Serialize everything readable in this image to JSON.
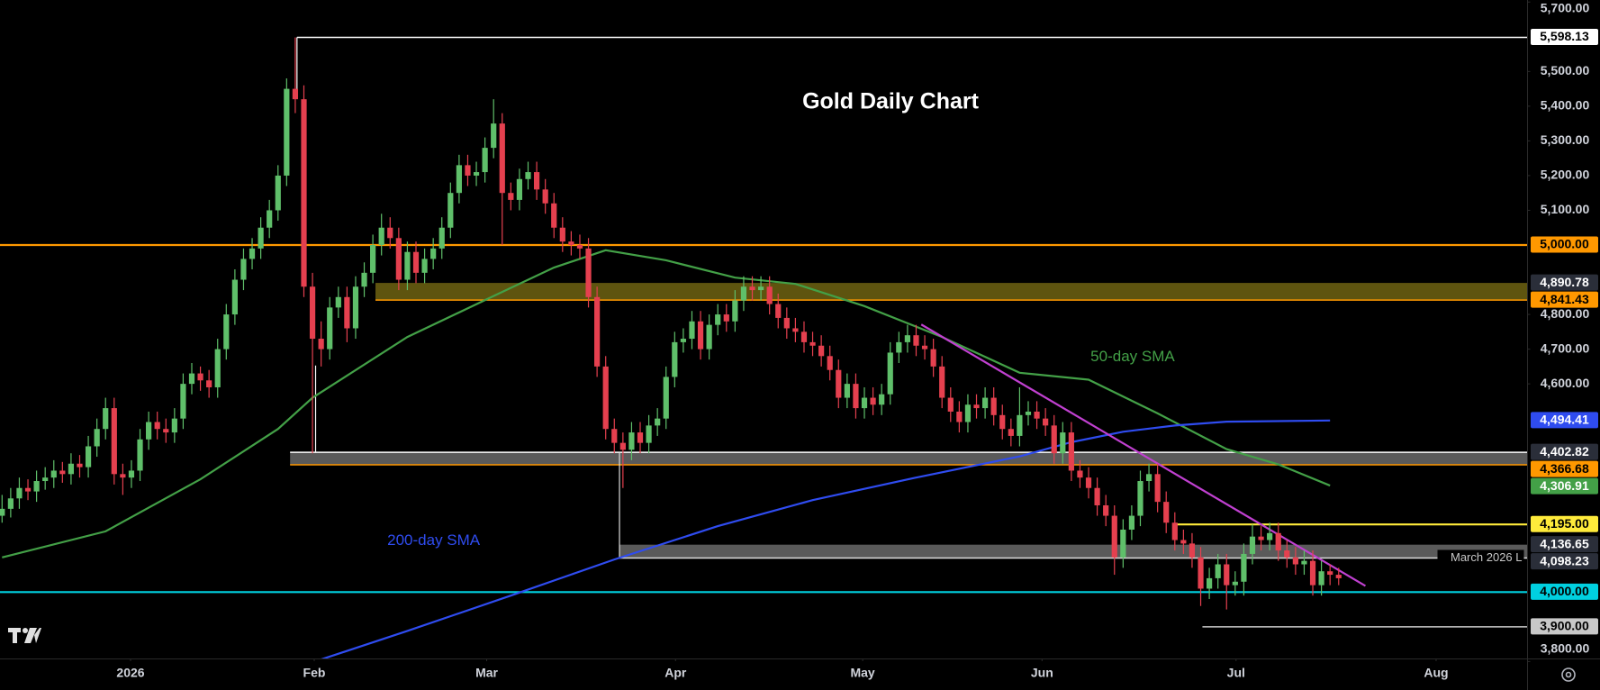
{
  "chart_data": {
    "type": "candlestick",
    "title": "Gold Daily Chart",
    "xlim": [
      -0.24,
      176.9
    ],
    "ylim": [
      3808.8,
      5705.9
    ],
    "xticks": [
      {
        "value": 14.9,
        "label": "2026"
      },
      {
        "value": 36.2,
        "label": "Feb"
      },
      {
        "value": 56.2,
        "label": "Mar"
      },
      {
        "value": 78.1,
        "label": "Apr"
      },
      {
        "value": 99.8,
        "label": "May"
      },
      {
        "value": 120.6,
        "label": "Jun"
      },
      {
        "value": 143.1,
        "label": "Jul"
      },
      {
        "value": 166.3,
        "label": "Aug"
      }
    ],
    "yticks": [
      {
        "value": 5700,
        "label": "5,700.00"
      },
      {
        "value": 5500,
        "label": "5,500.00"
      },
      {
        "value": 5400,
        "label": "5,400.00"
      },
      {
        "value": 5300,
        "label": "5,300.00"
      },
      {
        "value": 5200,
        "label": "5,200.00"
      },
      {
        "value": 5100,
        "label": "5,100.00"
      },
      {
        "value": 4800,
        "label": "4,800.00"
      },
      {
        "value": 4700,
        "label": "4,700.00"
      },
      {
        "value": 4600,
        "label": "4,600.00"
      },
      {
        "value": 3800,
        "label": "3,800.00"
      }
    ],
    "up_color": "#5fbf6a",
    "down_color": "#e5404f",
    "candles": {
      "open": [
        4220,
        4240,
        4270,
        4300,
        4290,
        4320,
        4330,
        4350,
        4340,
        4370,
        4360,
        4420,
        4470,
        4530,
        4340,
        4330,
        4350,
        4440,
        4490,
        4470,
        4460,
        4500,
        4600,
        4630,
        4610,
        4590,
        4700,
        4800,
        4900,
        4960,
        4990,
        5050,
        5100,
        5200,
        5450,
        5420,
        4880,
        4730,
        4700,
        4820,
        4850,
        4760,
        4880,
        4920,
        5000,
        5050,
        5020,
        4900,
        4980,
        4920,
        4960,
        4990,
        5050,
        5150,
        5230,
        5200,
        5210,
        5280,
        5350,
        5150,
        5130,
        5190,
        5210,
        5160,
        5120,
        5050,
        5010,
        5000,
        4990,
        4850,
        4650,
        4470,
        4430,
        4410,
        4460,
        4430,
        4480,
        4500,
        4620,
        4720,
        4730,
        4780,
        4700,
        4770,
        4800,
        4780,
        4840,
        4880,
        4870,
        4880,
        4830,
        4790,
        4760,
        4750,
        4720,
        4710,
        4680,
        4640,
        4560,
        4600,
        4530,
        4560,
        4540,
        4570,
        4690,
        4720,
        4740,
        4710,
        4700,
        4650,
        4560,
        4520,
        4490,
        4540,
        4530,
        4560,
        4510,
        4470,
        4450,
        4510,
        4520,
        4500,
        4480,
        4400,
        4460,
        4350,
        4330,
        4300,
        4250,
        4220,
        4100,
        4180,
        4220,
        4320,
        4340,
        4260,
        4200,
        4150,
        4140,
        4100,
        4010,
        4040,
        4080,
        4020,
        4030,
        4110,
        4160,
        4150,
        4170,
        4120,
        4100,
        4080,
        4090,
        4020,
        4060,
        4050
      ],
      "high": [
        4280,
        4300,
        4330,
        4325,
        4350,
        4360,
        4380,
        4375,
        4400,
        4395,
        4450,
        4500,
        4560,
        4560,
        4370,
        4380,
        4470,
        4520,
        4520,
        4500,
        4530,
        4630,
        4660,
        4650,
        4640,
        4730,
        4830,
        4930,
        4990,
        5020,
        5080,
        5130,
        5230,
        5480,
        5598.13,
        5460,
        4920,
        4780,
        4850,
        4880,
        4880,
        4910,
        4950,
        5030,
        5090,
        5080,
        5050,
        5010,
        5010,
        4990,
        5020,
        5080,
        5180,
        5260,
        5260,
        5240,
        5310,
        5420,
        5380,
        5180,
        5220,
        5240,
        5240,
        5190,
        5150,
        5080,
        5040,
        5030,
        5020,
        4880,
        4680,
        4500,
        4460,
        4490,
        4490,
        4510,
        4530,
        4650,
        4750,
        4760,
        4810,
        4810,
        4800,
        4830,
        4830,
        4870,
        4910,
        4910,
        4910,
        4910,
        4860,
        4820,
        4790,
        4780,
        4750,
        4740,
        4710,
        4670,
        4630,
        4630,
        4590,
        4590,
        4600,
        4720,
        4750,
        4770,
        4770,
        4740,
        4730,
        4680,
        4590,
        4550,
        4570,
        4570,
        4590,
        4590,
        4540,
        4500,
        4590,
        4550,
        4550,
        4530,
        4510,
        4490,
        4490,
        4380,
        4360,
        4330,
        4280,
        4250,
        4210,
        4250,
        4350,
        4370,
        4370,
        4290,
        4230,
        4180,
        4170,
        4130,
        4070,
        4110,
        4110,
        4060,
        4140,
        4195,
        4190,
        4200,
        4200,
        4150,
        4130,
        4120,
        4120,
        4090,
        4080,
        4070
      ],
      "low": [
        4200,
        4215,
        4240,
        4265,
        4260,
        4295,
        4300,
        4315,
        4310,
        4330,
        4330,
        4390,
        4440,
        4310,
        4280,
        4300,
        4320,
        4410,
        4440,
        4430,
        4430,
        4470,
        4570,
        4580,
        4560,
        4560,
        4670,
        4770,
        4870,
        4930,
        4960,
        5020,
        5070,
        5170,
        5380,
        4850,
        4400,
        4650,
        4670,
        4790,
        4720,
        4730,
        4850,
        4890,
        4970,
        4990,
        4870,
        4870,
        4890,
        4890,
        4930,
        4960,
        5020,
        5120,
        5170,
        5170,
        5180,
        5250,
        5000,
        5100,
        5100,
        5160,
        5130,
        5090,
        5020,
        4980,
        4970,
        4960,
        4820,
        4620,
        4440,
        4400,
        4300,
        4380,
        4400,
        4400,
        4450,
        4470,
        4590,
        4690,
        4700,
        4670,
        4670,
        4740,
        4750,
        4750,
        4810,
        4840,
        4840,
        4800,
        4760,
        4730,
        4720,
        4690,
        4680,
        4650,
        4610,
        4530,
        4530,
        4500,
        4500,
        4510,
        4510,
        4540,
        4660,
        4690,
        4680,
        4670,
        4620,
        4530,
        4490,
        4460,
        4460,
        4500,
        4500,
        4480,
        4440,
        4420,
        4420,
        4480,
        4470,
        4450,
        4370,
        4370,
        4320,
        4300,
        4270,
        4220,
        4190,
        4050,
        4070,
        4150,
        4190,
        4290,
        4230,
        4170,
        4120,
        4110,
        4070,
        3960,
        3980,
        4010,
        3950,
        3990,
        3990,
        4080,
        4120,
        4120,
        4090,
        4070,
        4050,
        4050,
        3990,
        3990,
        4020,
        4020
      ],
      "close": [
        4240,
        4270,
        4300,
        4290,
        4320,
        4330,
        4350,
        4340,
        4370,
        4360,
        4420,
        4470,
        4530,
        4340,
        4330,
        4350,
        4440,
        4490,
        4470,
        4460,
        4500,
        4600,
        4630,
        4610,
        4590,
        4700,
        4800,
        4900,
        4960,
        4990,
        5050,
        5100,
        5200,
        5450,
        5420,
        4880,
        4730,
        4700,
        4820,
        4850,
        4760,
        4880,
        4920,
        5000,
        5050,
        5020,
        4900,
        4980,
        4920,
        4960,
        4990,
        5050,
        5150,
        5230,
        5200,
        5210,
        5280,
        5350,
        5150,
        5130,
        5190,
        5210,
        5160,
        5120,
        5050,
        5010,
        5000,
        4990,
        4850,
        4650,
        4470,
        4430,
        4410,
        4460,
        4430,
        4480,
        4500,
        4620,
        4720,
        4730,
        4780,
        4700,
        4770,
        4800,
        4780,
        4840,
        4880,
        4870,
        4880,
        4830,
        4790,
        4760,
        4750,
        4720,
        4710,
        4680,
        4640,
        4560,
        4600,
        4530,
        4560,
        4540,
        4570,
        4690,
        4720,
        4740,
        4710,
        4700,
        4650,
        4560,
        4520,
        4490,
        4540,
        4530,
        4560,
        4510,
        4470,
        4450,
        4510,
        4520,
        4500,
        4480,
        4400,
        4460,
        4350,
        4330,
        4300,
        4250,
        4220,
        4100,
        4180,
        4220,
        4320,
        4340,
        4260,
        4200,
        4150,
        4140,
        4100,
        4010,
        4040,
        4080,
        4020,
        4030,
        4110,
        4160,
        4150,
        4170,
        4120,
        4100,
        4080,
        4090,
        4020,
        4060,
        4050,
        4040
      ]
    },
    "series": [
      {
        "name": "50-day SMA",
        "color": "#43a047",
        "last_label": "4,306.91",
        "x": [
          0,
          12,
          23,
          32,
          36,
          47,
          57,
          64,
          70,
          77,
          85,
          92,
          100,
          109,
          118,
          126,
          134,
          142,
          148,
          154
        ],
        "values": [
          4100,
          4175,
          4325,
          4470,
          4560,
          4735,
          4853,
          4935,
          4985,
          4956,
          4906,
          4888,
          4824,
          4735,
          4632,
          4612,
          4515,
          4412,
          4368,
          4306.91
        ]
      },
      {
        "name": "200-day SMA",
        "color": "#2f4cf0",
        "last_label": "4,494.41",
        "x": [
          37,
          47,
          59,
          71,
          83,
          94,
          106,
          118,
          124,
          130,
          136,
          142,
          154
        ],
        "values": [
          3806,
          3888,
          3990,
          4094,
          4190,
          4265,
          4330,
          4391,
          4432,
          4462,
          4480,
          4491,
          4494.41
        ]
      }
    ],
    "trendline": {
      "color": "#c040d0",
      "x": [
        106.6,
        158.1
      ],
      "values": [
        4771,
        4018
      ]
    },
    "levels": [
      {
        "value": 5598.13,
        "label": "5,598.13",
        "color": "#ffffff",
        "from": 34.2
      },
      {
        "value": 5000,
        "label": "5,000.00",
        "color": "#ff9800"
      },
      {
        "value": 4195,
        "label": "4,195.00",
        "color": "#ffeb3b",
        "from": 135.9
      },
      {
        "value": 4000,
        "label": "4,000.00",
        "color": "#00d0e0"
      },
      {
        "value": 3900,
        "label": "3,900.00",
        "color": "#c8c8c8",
        "from": 139.2
      }
    ],
    "zones": [
      {
        "upper": 4890.78,
        "upper_label": "4,890.78",
        "upper_color": "#2a2e39",
        "upper_line": null,
        "lower": 4841.43,
        "lower_label": "4,841.43",
        "lower_color": "#ff9800",
        "lower_line": "#ff9800",
        "fill": "#6f6312",
        "from": 43.3
      },
      {
        "upper": 4402.82,
        "upper_label": "4,402.82",
        "upper_color": "#2a2e39",
        "upper_line": "#ffffff",
        "lower": 4366.68,
        "lower_label": "4,366.68",
        "lower_color": "#ff9800",
        "lower_line": "#ff9800",
        "fill": "#6a6a6a",
        "from": 33.4
      },
      {
        "upper": 4136.65,
        "upper_label": "4,136.65",
        "upper_color": "#2a2e39",
        "upper_line": null,
        "lower": 4098.23,
        "lower_label": "4,098.23",
        "lower_color": "#2a2e39",
        "lower_line": "#dddddd",
        "lower_note": "March 2026 L",
        "fill": "#6a6a6a",
        "from": 71.6
      }
    ]
  }
}
